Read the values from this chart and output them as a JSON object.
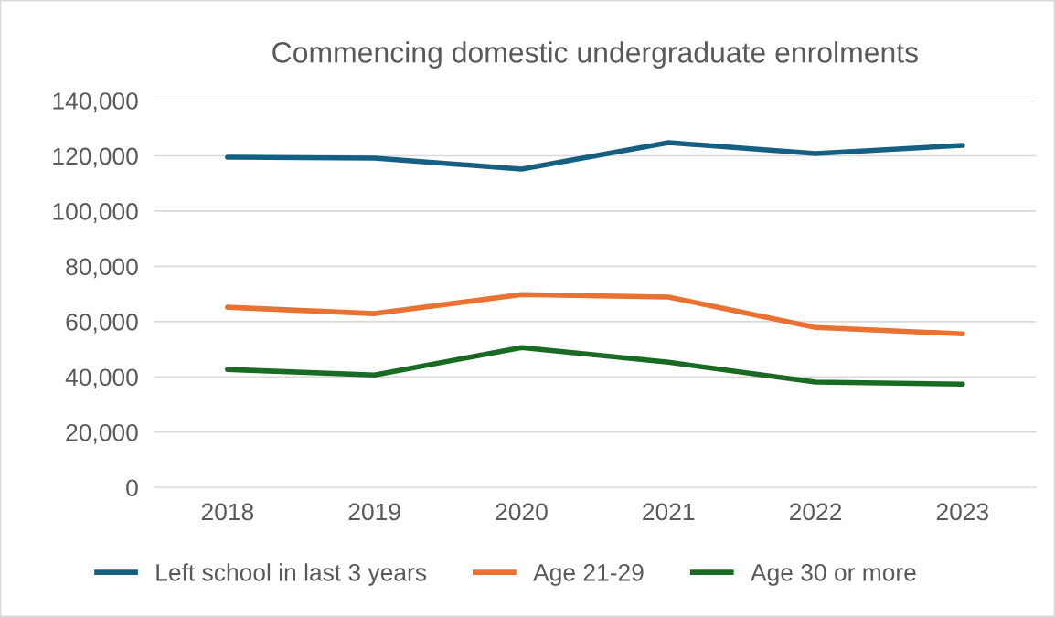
{
  "chart_data": {
    "type": "line",
    "title": "Commencing domestic undergraduate enrolments",
    "categories": [
      "2018",
      "2019",
      "2020",
      "2021",
      "2022",
      "2023"
    ],
    "series": [
      {
        "name": "Left school in last 3 years",
        "color": "#156082",
        "values": [
          119500,
          119200,
          115200,
          124800,
          120800,
          123800
        ]
      },
      {
        "name": "Age 21-29",
        "color": "#e97132",
        "values": [
          65200,
          62900,
          69800,
          68900,
          57900,
          55600
        ]
      },
      {
        "name": "Age 30 or more",
        "color": "#196b24",
        "values": [
          42700,
          40700,
          50600,
          45300,
          38100,
          37400
        ]
      }
    ],
    "ylim": [
      0,
      140000
    ],
    "yticks": [
      0,
      {
        "value": 20000,
        "label": "20,000"
      },
      {
        "value": 40000,
        "label": "40,000"
      },
      {
        "value": 60000,
        "label": "60,000"
      },
      {
        "value": 80000,
        "label": "80,000"
      },
      {
        "value": 100000,
        "label": "100,000"
      },
      {
        "value": 120000,
        "label": "120,000"
      },
      {
        "value": 140000,
        "label": "140,000"
      }
    ],
    "grid": "y",
    "legend": "bottom",
    "marker": "none",
    "line_style": "solid"
  }
}
